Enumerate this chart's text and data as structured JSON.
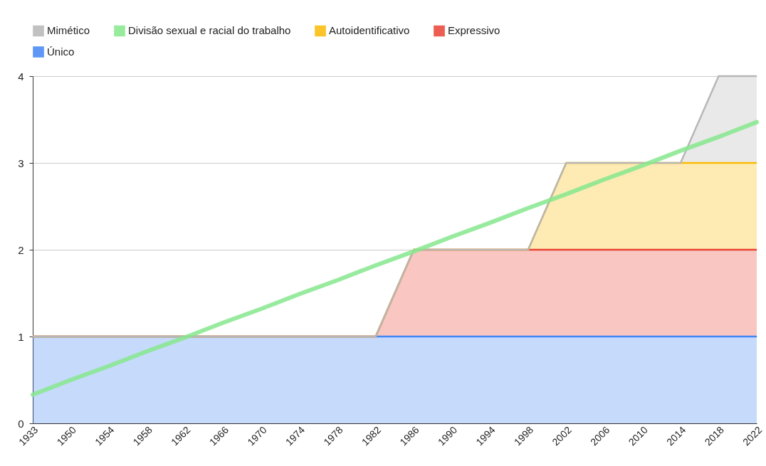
{
  "chart_data": {
    "type": "area",
    "stacked": true,
    "categories": [
      "1933",
      "1950",
      "1954",
      "1958",
      "1962",
      "1966",
      "1970",
      "1974",
      "1978",
      "1982",
      "1986",
      "1990",
      "1994",
      "1998",
      "2002",
      "2006",
      "2010",
      "2014",
      "2018",
      "2022"
    ],
    "series": [
      {
        "name": "Único",
        "color": "#4285f4",
        "values": [
          1,
          1,
          1,
          1,
          1,
          1,
          1,
          1,
          1,
          1,
          1,
          1,
          1,
          1,
          1,
          1,
          1,
          1,
          1,
          1
        ]
      },
      {
        "name": "Expressivo",
        "color": "#ea4335",
        "values": [
          0,
          0,
          0,
          0,
          0,
          0,
          0,
          0,
          0,
          0,
          1,
          1,
          1,
          1,
          1,
          1,
          1,
          1,
          1,
          1
        ]
      },
      {
        "name": "Autoidentificativo",
        "color": "#fbbc04",
        "values": [
          0,
          0,
          0,
          0,
          0,
          0,
          0,
          0,
          0,
          0,
          0,
          0,
          0,
          0,
          1,
          1,
          1,
          1,
          1,
          1
        ]
      },
      {
        "name": "Divisão sexual e racial do trabalho",
        "type": "line",
        "color": "#86e88d",
        "values": [
          0.33,
          0.5,
          0.66,
          0.83,
          0.99,
          1.16,
          1.32,
          1.49,
          1.65,
          1.82,
          1.98,
          2.15,
          2.31,
          2.48,
          2.64,
          2.81,
          2.97,
          3.14,
          3.3,
          3.47
        ]
      },
      {
        "name": "Mimético",
        "color": "#b7b7b7",
        "values": [
          0,
          0,
          0,
          0,
          0,
          0,
          0,
          0,
          0,
          0,
          0,
          0,
          0,
          0,
          0,
          0,
          0,
          0,
          1,
          1
        ]
      }
    ],
    "ylim": [
      0,
      4
    ],
    "yticks": [
      0,
      1,
      2,
      3,
      4
    ],
    "grid": "y",
    "legend": "top"
  }
}
